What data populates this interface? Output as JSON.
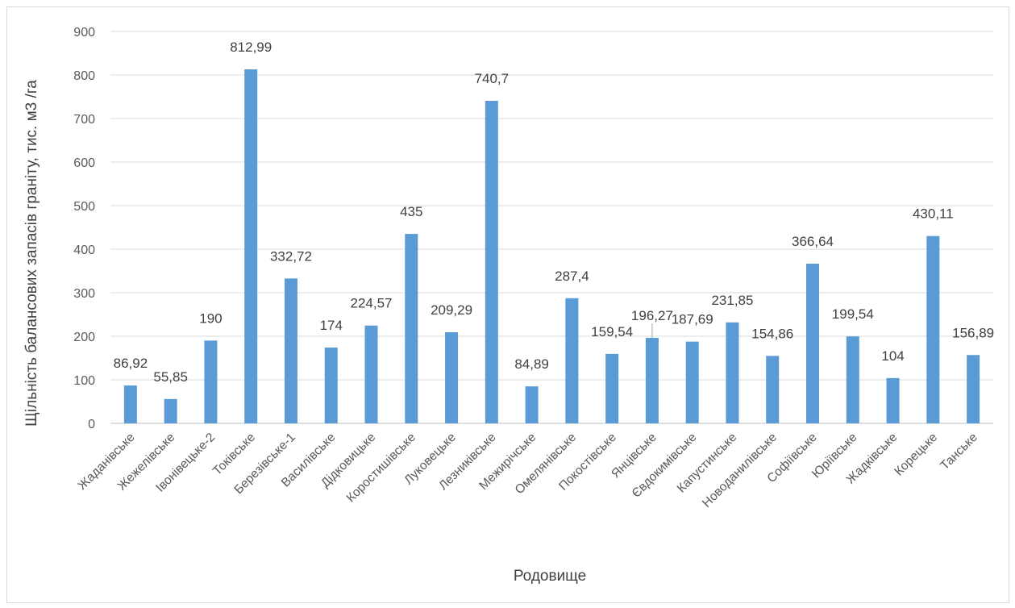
{
  "chart_data": {
    "type": "bar",
    "title": "",
    "xlabel": "Родовище",
    "ylabel": "Щільність балансових запасів граніту, тис. м3 /га",
    "ylim": [
      0,
      900
    ],
    "yticks": [
      0,
      100,
      200,
      300,
      400,
      500,
      600,
      700,
      800,
      900
    ],
    "grid": true,
    "legend": "none",
    "bar_color": "#5b9bd5",
    "categories": [
      "Жаданівське",
      "Жежелівське",
      "Івонівецьке-2",
      "Токівське",
      "Березівське-1",
      "Василівське",
      "Дідковицьке",
      "Коростишівське",
      "Луковецьке",
      "Лезниківське",
      "Межирічське",
      "Омелянівське",
      "Покостівське",
      "Янцівське",
      "Євдокимівське",
      "Капустинське",
      "Новоданилівське",
      "Софіївське",
      "Юріївське",
      "Жадківське",
      "Корецьке",
      "Танське"
    ],
    "values": [
      86.92,
      55.85,
      190,
      812.99,
      332.72,
      174,
      224.57,
      435,
      209.29,
      740.7,
      84.89,
      287.4,
      159.54,
      196.27,
      187.69,
      231.85,
      154.86,
      366.64,
      199.54,
      104,
      430.11,
      156.89
    ],
    "data_labels": [
      "86,92",
      "55,85",
      "190",
      "812,99",
      "332,72",
      "174",
      "224,57",
      "435",
      "209,29",
      "740,7",
      "84,89",
      "287,4",
      "159,54",
      "196,27",
      "187,69",
      "231,85",
      "154,86",
      "366,64",
      "199,54",
      "104",
      "430,11",
      "156,89"
    ]
  }
}
